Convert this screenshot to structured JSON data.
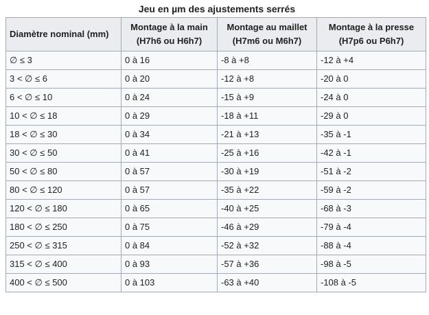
{
  "caption": "Jeu en µm des ajustements serrés",
  "headers": [
    {
      "line1": "Diamètre nominal (mm)",
      "line2": ""
    },
    {
      "line1": "Montage à la main",
      "line2": "(H7h6 ou H6h7)"
    },
    {
      "line1": "Montage au maillet",
      "line2": "(H7m6 ou M6h7)"
    },
    {
      "line1": "Montage à la presse",
      "line2": "(H7p6 ou P6h7)"
    }
  ],
  "rows": [
    [
      "∅ ≤ 3",
      "0 à 16",
      "-8 à +8",
      "-12 à +4"
    ],
    [
      "3 < ∅ ≤ 6",
      "0 à 20",
      "-12 à +8",
      "-20 à 0"
    ],
    [
      "6 < ∅ ≤ 10",
      "0 à 24",
      "-15 à +9",
      "-24 à 0"
    ],
    [
      "10 < ∅ ≤ 18",
      "0 à 29",
      "-18 à +11",
      "-29 à 0"
    ],
    [
      "18 < ∅ ≤ 30",
      "0 à 34",
      "-21 à +13",
      "-35 à -1"
    ],
    [
      "30 < ∅ ≤ 50",
      "0 à 41",
      "-25 à +16",
      "-42 à -1"
    ],
    [
      "50 < ∅ ≤ 80",
      "0 à 57",
      "-30 à +19",
      "-51 à -2"
    ],
    [
      "80 < ∅ ≤ 120",
      "0 à 57",
      "-35 à +22",
      "-59 à -2"
    ],
    [
      "120 < ∅ ≤ 180",
      "0 à 65",
      "-40 à +25",
      "-68 à -3"
    ],
    [
      "180 < ∅ ≤ 250",
      "0 à 75",
      "-46 à +29",
      "-79 à -4"
    ],
    [
      "250 < ∅ ≤ 315",
      "0 à 84",
      "-52 à +32",
      "-88 à -4"
    ],
    [
      "315 < ∅ ≤ 400",
      "0 à 93",
      "-57 à +36",
      "-98 à -5"
    ],
    [
      "400 < ∅ ≤ 500",
      "0 à 103",
      "-63 à +40",
      "-108 à -5"
    ]
  ]
}
